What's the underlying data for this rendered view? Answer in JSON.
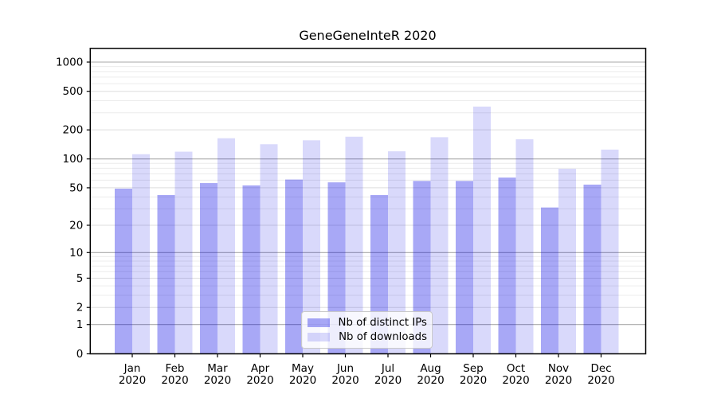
{
  "chart": {
    "colors": {
      "bar_base": "#0000e6",
      "ips_alpha": 0.34,
      "downloads_alpha": 0.15,
      "grid_decade": "#a9a9a9",
      "grid_labeled": "#dedede",
      "grid_minor": "#ececec",
      "spine": "#000000"
    }
  },
  "chart_data": {
    "type": "bar",
    "title": "GeneGeneInteR 2020",
    "categories": [
      "Jan",
      "Feb",
      "Mar",
      "Apr",
      "May",
      "Jun",
      "Jul",
      "Aug",
      "Sep",
      "Oct",
      "Nov",
      "Dec"
    ],
    "category_year": "2020",
    "series": [
      {
        "name": "Nb of distinct IPs",
        "values": [
          49,
          42,
          56,
          53,
          61,
          57,
          42,
          59,
          59,
          64,
          31,
          54
        ]
      },
      {
        "name": "Nb of downloads",
        "values": [
          112,
          119,
          164,
          142,
          156,
          170,
          120,
          168,
          348,
          160,
          79,
          125
        ]
      }
    ],
    "xlabel": "",
    "ylabel": "",
    "yscale": "log1p",
    "ylim": [
      0,
      1000
    ],
    "yticks": [
      0,
      1,
      2,
      5,
      10,
      20,
      50,
      100,
      200,
      500,
      1000
    ],
    "grid": "on",
    "legend_position": "lower center"
  }
}
